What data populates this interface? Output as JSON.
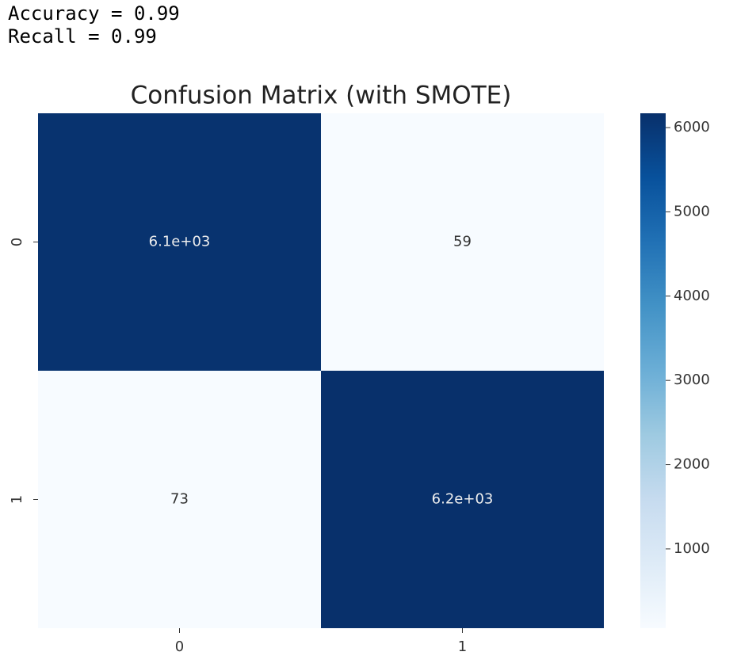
{
  "output_lines": [
    "Accuracy = 0.99",
    "Recall = 0.99"
  ],
  "chart_data": {
    "type": "heatmap",
    "title": "Confusion Matrix (with SMOTE)",
    "x_categories": [
      "0",
      "1"
    ],
    "y_categories": [
      "0",
      "1"
    ],
    "values": [
      [
        6100,
        59
      ],
      [
        73,
        6170
      ]
    ],
    "value_labels": [
      [
        "6.1e+03",
        "59"
      ],
      [
        "73",
        "6.2e+03"
      ]
    ],
    "clim": [
      59,
      6170
    ],
    "cticks": [
      1000,
      2000,
      3000,
      4000,
      5000,
      6000
    ],
    "colormap": [
      "#f7fbff",
      "#deebf7",
      "#c6dbef",
      "#9ecae1",
      "#6baed6",
      "#4292c6",
      "#2171b5",
      "#08519c",
      "#08306b"
    ]
  }
}
